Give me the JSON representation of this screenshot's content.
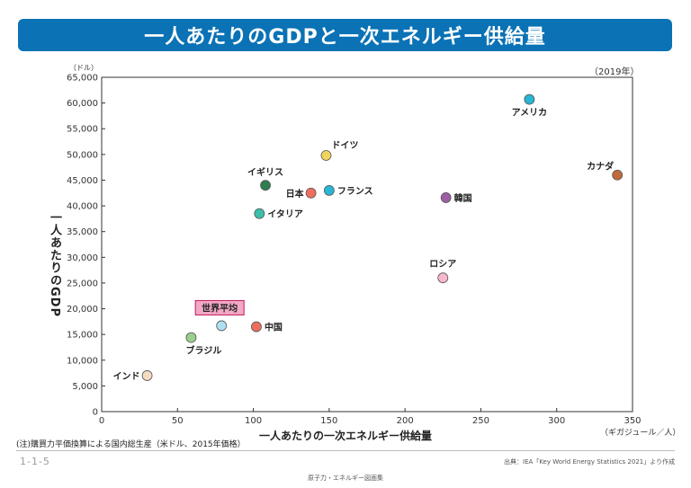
{
  "title": "一人あたりのGDPと一次エネルギー供給量",
  "colors": {
    "title_bg": "#0a72b5",
    "world_label_bg": "#f2a8c6",
    "world_label_border": "#c2185b"
  },
  "chart_data": {
    "type": "scatter",
    "title": "一人あたりのGDPと一次エネルギー供給量",
    "xlabel": "一人あたりの一次エネルギー供給量",
    "ylabel": "一人あたりのGDP",
    "x_unit": "（ギガジュール／人）",
    "y_unit": "（ドル）",
    "year_label": "（2019年）",
    "xlim": [
      0,
      350
    ],
    "ylim": [
      0,
      65000
    ],
    "x_ticks": [
      "0",
      "50",
      "100",
      "150",
      "200",
      "250",
      "300",
      "350"
    ],
    "y_ticks": [
      "0",
      "5,000",
      "10,000",
      "15,000",
      "20,000",
      "25,000",
      "30,000",
      "35,000",
      "40,000",
      "45,000",
      "50,000",
      "55,000",
      "60,000",
      "65,000"
    ],
    "grid": false,
    "points": [
      {
        "name": "アメリカ",
        "x": 282,
        "y": 60700,
        "color": "#29b6d6"
      },
      {
        "name": "カナダ",
        "x": 340,
        "y": 46000,
        "color": "#c06a3e"
      },
      {
        "name": "ドイツ",
        "x": 148,
        "y": 49800,
        "color": "#f2d45c"
      },
      {
        "name": "イギリス",
        "x": 108,
        "y": 44000,
        "color": "#2e7d4f"
      },
      {
        "name": "日本",
        "x": 138,
        "y": 42500,
        "color": "#ef6f5e"
      },
      {
        "name": "フランス",
        "x": 150,
        "y": 43000,
        "color": "#29b6d6"
      },
      {
        "name": "韓国",
        "x": 227,
        "y": 41600,
        "color": "#a05ea7"
      },
      {
        "name": "イタリア",
        "x": 104,
        "y": 38500,
        "color": "#3bbfa8"
      },
      {
        "name": "ロシア",
        "x": 225,
        "y": 26000,
        "color": "#f7b7cf"
      },
      {
        "name": "中国",
        "x": 102,
        "y": 16500,
        "color": "#ef6f5e"
      },
      {
        "name": "世界平均",
        "x": 79,
        "y": 16700,
        "color": "#aee0f2",
        "highlight": true
      },
      {
        "name": "ブラジル",
        "x": 59,
        "y": 14400,
        "color": "#9ccf8e"
      },
      {
        "name": "インド",
        "x": 30,
        "y": 7000,
        "color": "#f5dcc0"
      }
    ]
  },
  "note": "(注)購買力平価換算による国内総生産（米ドル、2015年価格）",
  "source": "出典：IEA「Key World Energy Statistics 2021」より作成",
  "slide_number": "1-1-5",
  "footer": "原子力・エネルギー図面集"
}
